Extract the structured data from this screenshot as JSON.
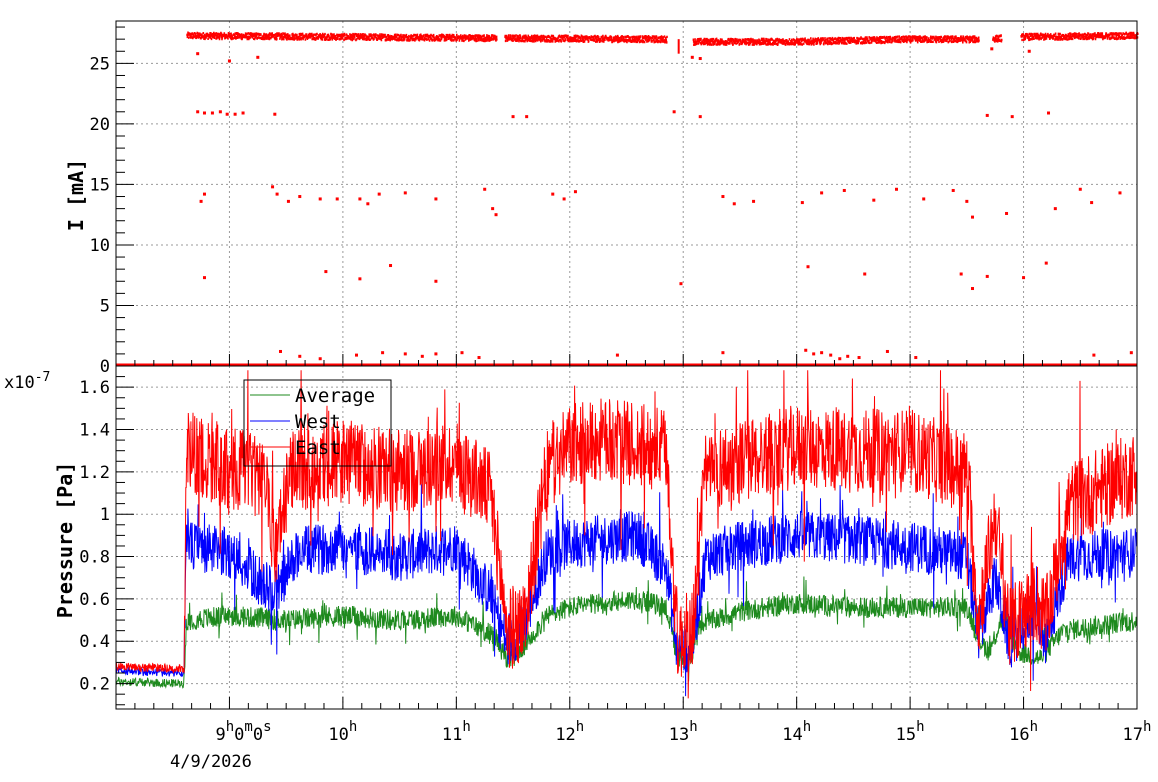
{
  "colors": {
    "average": "#1e8a1e",
    "west": "#0000ff",
    "east": "#ff0000",
    "axis": "#000000",
    "grid": "#9a9a9a"
  },
  "chart_data": [
    {
      "type": "scatter",
      "id": "current",
      "xlabel": "",
      "ylabel": "I [mA]",
      "x_unit": "hour",
      "xlim": [
        8.0,
        17.0
      ],
      "ylim": [
        0,
        28.5
      ],
      "y_ticks": [
        "0",
        "5",
        "10",
        "15",
        "20",
        "25"
      ],
      "grid": true,
      "series": [
        {
          "color": "#ff0000",
          "main_band": [
            [
              8.62,
              27.3
            ],
            [
              11.35,
              27.1
            ],
            [
              12.85,
              27.0
            ],
            [
              13.0,
              26.8
            ],
            [
              14.0,
              26.8
            ],
            [
              15.0,
              27.0
            ],
            [
              15.65,
              27.0
            ],
            [
              16.0,
              27.2
            ],
            [
              17.0,
              27.3
            ]
          ],
          "gaps": [
            [
              11.35,
              11.42
            ],
            [
              12.85,
              13.08
            ],
            [
              15.6,
              15.72
            ],
            [
              15.8,
              15.97
            ]
          ],
          "baseline_segments": [
            [
              8.0,
              8.62
            ],
            [
              8.62,
              17.0
            ]
          ],
          "scattered_points": [
            [
              8.72,
              21.0
            ],
            [
              8.78,
              20.9
            ],
            [
              8.85,
              20.9
            ],
            [
              8.92,
              21.0
            ],
            [
              8.98,
              20.8
            ],
            [
              9.05,
              20.8
            ],
            [
              9.12,
              20.9
            ],
            [
              9.4,
              20.8
            ],
            [
              11.5,
              20.6
            ],
            [
              11.62,
              20.6
            ],
            [
              12.92,
              21.0
            ],
            [
              13.15,
              20.6
            ],
            [
              15.68,
              20.7
            ],
            [
              15.9,
              20.6
            ],
            [
              16.22,
              20.9
            ],
            [
              8.75,
              13.6
            ],
            [
              8.78,
              14.2
            ],
            [
              9.38,
              14.8
            ],
            [
              9.42,
              14.2
            ],
            [
              9.52,
              13.6
            ],
            [
              9.62,
              14.0
            ],
            [
              9.8,
              13.8
            ],
            [
              9.95,
              13.8
            ],
            [
              10.15,
              13.8
            ],
            [
              10.22,
              13.4
            ],
            [
              10.32,
              14.2
            ],
            [
              10.55,
              14.3
            ],
            [
              10.82,
              13.8
            ],
            [
              11.25,
              14.6
            ],
            [
              11.32,
              13.0
            ],
            [
              11.35,
              12.5
            ],
            [
              11.85,
              14.2
            ],
            [
              11.95,
              13.8
            ],
            [
              12.05,
              14.4
            ],
            [
              13.35,
              14.0
            ],
            [
              13.45,
              13.4
            ],
            [
              13.62,
              13.6
            ],
            [
              14.05,
              13.5
            ],
            [
              14.22,
              14.3
            ],
            [
              14.42,
              14.5
            ],
            [
              14.68,
              13.7
            ],
            [
              14.88,
              14.6
            ],
            [
              15.12,
              13.8
            ],
            [
              15.38,
              14.5
            ],
            [
              15.5,
              13.6
            ],
            [
              15.55,
              12.3
            ],
            [
              15.85,
              12.6
            ],
            [
              16.28,
              13.0
            ],
            [
              16.5,
              14.6
            ],
            [
              16.6,
              13.5
            ],
            [
              16.85,
              14.3
            ],
            [
              8.78,
              7.3
            ],
            [
              9.85,
              7.8
            ],
            [
              10.15,
              7.2
            ],
            [
              10.42,
              8.3
            ],
            [
              10.82,
              7.0
            ],
            [
              14.1,
              8.2
            ],
            [
              14.6,
              7.6
            ],
            [
              15.45,
              7.6
            ],
            [
              15.55,
              6.4
            ],
            [
              15.68,
              7.4
            ],
            [
              16.0,
              7.3
            ],
            [
              16.2,
              8.5
            ],
            [
              8.72,
              25.8
            ],
            [
              9.0,
              25.2
            ],
            [
              9.25,
              25.5
            ],
            [
              13.08,
              25.5
            ],
            [
              13.15,
              25.4
            ],
            [
              15.72,
              26.2
            ],
            [
              16.05,
              26.0
            ],
            [
              12.98,
              6.8
            ],
            [
              9.45,
              1.2
            ],
            [
              9.62,
              0.8
            ],
            [
              9.8,
              0.6
            ],
            [
              10.12,
              0.9
            ],
            [
              10.35,
              1.1
            ],
            [
              10.55,
              1.0
            ],
            [
              10.7,
              0.8
            ],
            [
              10.82,
              1.0
            ],
            [
              11.05,
              1.1
            ],
            [
              11.2,
              0.7
            ],
            [
              12.42,
              0.9
            ],
            [
              13.35,
              1.1
            ],
            [
              14.08,
              1.3
            ],
            [
              14.15,
              1.0
            ],
            [
              14.22,
              1.1
            ],
            [
              14.3,
              0.9
            ],
            [
              14.38,
              0.6
            ],
            [
              14.45,
              0.8
            ],
            [
              14.55,
              0.7
            ],
            [
              14.8,
              1.2
            ],
            [
              15.05,
              0.7
            ],
            [
              16.62,
              0.9
            ],
            [
              16.95,
              1.1
            ]
          ]
        }
      ]
    },
    {
      "type": "line",
      "id": "pressure",
      "xlabel": "",
      "ylabel": "Pressure [Pa]",
      "y_multiplier": "x10",
      "y_multiplier_exp": "-7",
      "x_unit": "hour",
      "xlim": [
        8.0,
        17.0
      ],
      "ylim": [
        0.08,
        1.7
      ],
      "y_ticks": [
        "0.2",
        "0.4",
        "0.6",
        "0.8",
        "1",
        "1.2",
        "1.4",
        "1.6"
      ],
      "grid": true,
      "legend_position": "top-left",
      "series": [
        {
          "name": "Average",
          "color": "#1e8a1e",
          "points": [
            [
              8.0,
              0.21
            ],
            [
              8.6,
              0.2
            ],
            [
              8.62,
              0.5
            ],
            [
              9.0,
              0.52
            ],
            [
              9.5,
              0.5
            ],
            [
              10.0,
              0.52
            ],
            [
              10.5,
              0.5
            ],
            [
              11.0,
              0.52
            ],
            [
              11.35,
              0.42
            ],
            [
              11.45,
              0.3
            ],
            [
              11.6,
              0.38
            ],
            [
              11.8,
              0.52
            ],
            [
              12.0,
              0.56
            ],
            [
              12.3,
              0.58
            ],
            [
              12.6,
              0.6
            ],
            [
              12.85,
              0.56
            ],
            [
              12.95,
              0.32
            ],
            [
              13.05,
              0.3
            ],
            [
              13.15,
              0.48
            ],
            [
              13.5,
              0.54
            ],
            [
              14.0,
              0.58
            ],
            [
              14.5,
              0.56
            ],
            [
              15.0,
              0.56
            ],
            [
              15.5,
              0.56
            ],
            [
              15.62,
              0.4
            ],
            [
              15.7,
              0.35
            ],
            [
              15.8,
              0.5
            ],
            [
              15.95,
              0.35
            ],
            [
              16.15,
              0.32
            ],
            [
              16.35,
              0.45
            ],
            [
              17.0,
              0.5
            ]
          ],
          "noise_amp": 0.05
        },
        {
          "name": "West",
          "color": "#0000ff",
          "points": [
            [
              8.0,
              0.26
            ],
            [
              8.6,
              0.25
            ],
            [
              8.62,
              0.85
            ],
            [
              9.0,
              0.82
            ],
            [
              9.4,
              0.62
            ],
            [
              9.6,
              0.82
            ],
            [
              10.0,
              0.85
            ],
            [
              10.5,
              0.8
            ],
            [
              11.0,
              0.85
            ],
            [
              11.3,
              0.62
            ],
            [
              11.45,
              0.38
            ],
            [
              11.6,
              0.48
            ],
            [
              11.8,
              0.82
            ],
            [
              12.0,
              0.86
            ],
            [
              12.3,
              0.88
            ],
            [
              12.6,
              0.9
            ],
            [
              12.85,
              0.75
            ],
            [
              12.95,
              0.35
            ],
            [
              13.08,
              0.38
            ],
            [
              13.2,
              0.8
            ],
            [
              13.5,
              0.85
            ],
            [
              14.0,
              0.9
            ],
            [
              14.5,
              0.88
            ],
            [
              15.0,
              0.85
            ],
            [
              15.5,
              0.8
            ],
            [
              15.6,
              0.42
            ],
            [
              15.75,
              0.7
            ],
            [
              15.88,
              0.38
            ],
            [
              16.1,
              0.55
            ],
            [
              16.2,
              0.4
            ],
            [
              16.4,
              0.8
            ],
            [
              17.0,
              0.82
            ]
          ],
          "noise_amp": 0.12
        },
        {
          "name": "East",
          "color": "#ff0000",
          "points": [
            [
              8.0,
              0.28
            ],
            [
              8.6,
              0.27
            ],
            [
              8.62,
              1.3
            ],
            [
              9.0,
              1.22
            ],
            [
              9.3,
              1.18
            ],
            [
              9.4,
              0.85
            ],
            [
              9.55,
              1.2
            ],
            [
              10.0,
              1.25
            ],
            [
              10.5,
              1.2
            ],
            [
              11.0,
              1.25
            ],
            [
              11.3,
              1.1
            ],
            [
              11.45,
              0.45
            ],
            [
              11.6,
              0.5
            ],
            [
              11.8,
              1.2
            ],
            [
              12.0,
              1.32
            ],
            [
              12.3,
              1.35
            ],
            [
              12.6,
              1.33
            ],
            [
              12.85,
              1.3
            ],
            [
              12.95,
              0.4
            ],
            [
              13.08,
              0.45
            ],
            [
              13.2,
              1.2
            ],
            [
              13.5,
              1.25
            ],
            [
              14.0,
              1.32
            ],
            [
              14.5,
              1.3
            ],
            [
              15.0,
              1.3
            ],
            [
              15.5,
              1.2
            ],
            [
              15.6,
              0.5
            ],
            [
              15.75,
              1.0
            ],
            [
              15.88,
              0.45
            ],
            [
              16.1,
              0.6
            ],
            [
              16.2,
              0.5
            ],
            [
              16.4,
              1.05
            ],
            [
              17.0,
              1.2
            ]
          ],
          "noise_amp": 0.2
        }
      ]
    }
  ],
  "x_axis": {
    "ticks": [
      {
        "hour": 9,
        "label": "9",
        "sup": "h",
        "extra": "0",
        "extra_sup": "m",
        "extra2": "0",
        "extra2_sup": "s"
      },
      {
        "hour": 10,
        "label": "10",
        "sup": "h"
      },
      {
        "hour": 11,
        "label": "11",
        "sup": "h"
      },
      {
        "hour": 12,
        "label": "12",
        "sup": "h"
      },
      {
        "hour": 13,
        "label": "13",
        "sup": "h"
      },
      {
        "hour": 14,
        "label": "14",
        "sup": "h"
      },
      {
        "hour": 15,
        "label": "15",
        "sup": "h"
      },
      {
        "hour": 16,
        "label": "16",
        "sup": "h"
      },
      {
        "hour": 17,
        "label": "17",
        "sup": "h"
      }
    ],
    "date_label": "4/9/2026"
  }
}
